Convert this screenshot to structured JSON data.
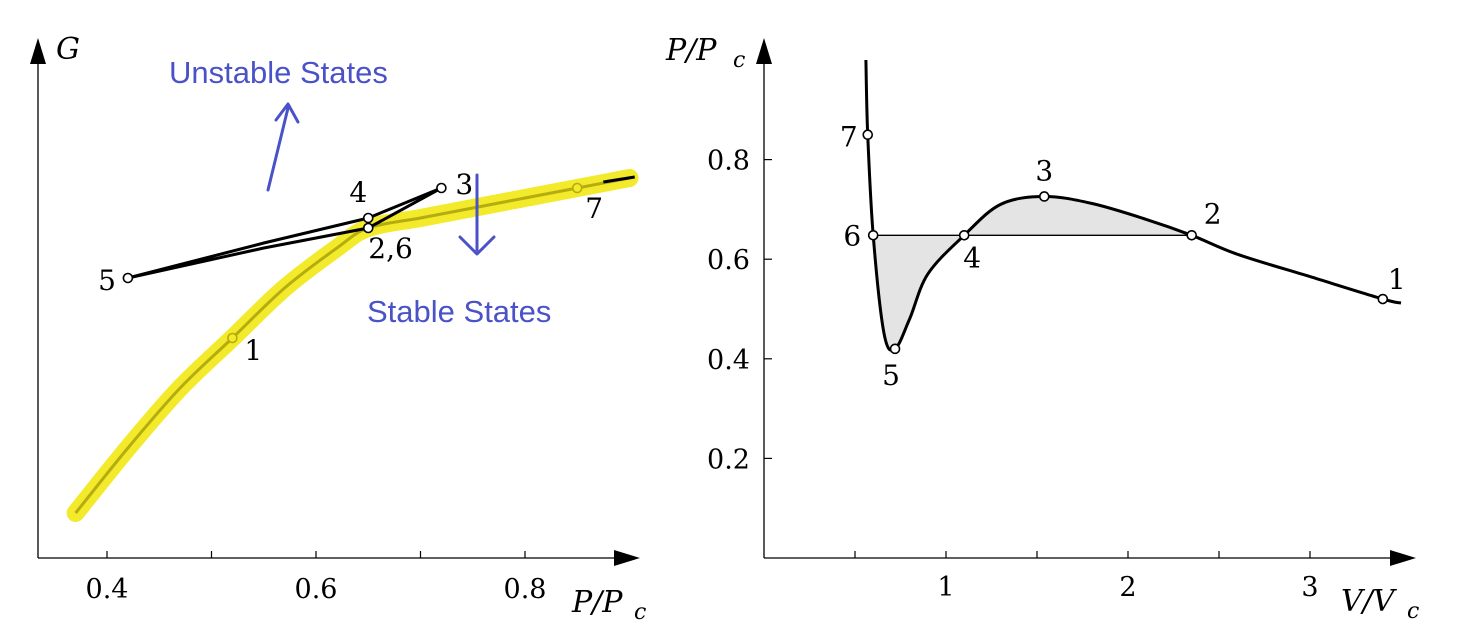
{
  "colors": {
    "axis": "#000000",
    "curve": "#000000",
    "highlight": "#f2ea2a",
    "stable_line": "#b5ad10",
    "annotation": "#4a52c8",
    "fill": "#e4e4e4",
    "marker_fill": "#ffffff"
  },
  "chart_data": [
    {
      "type": "line",
      "xlabel": "P/Pc",
      "ylabel": "G",
      "xlim": [
        0.34,
        0.92
      ],
      "ylim": [
        0,
        1
      ],
      "x_ticks": [
        0.4,
        0.5,
        0.6,
        0.7,
        0.8
      ],
      "x_tick_labels": [
        "0.4",
        "0.6",
        "0.8"
      ],
      "y_tick_labels": [],
      "grid": false,
      "series": [
        {
          "role": "stable",
          "points": [
            [
              0.37,
              0.09
            ],
            [
              0.42,
              0.22
            ],
            [
              0.47,
              0.34
            ],
            [
              0.52,
              0.44
            ],
            [
              0.57,
              0.54
            ],
            [
              0.62,
              0.62
            ],
            [
              0.65,
              0.66
            ],
            [
              0.7,
              0.68
            ],
            [
              0.75,
              0.7
            ],
            [
              0.8,
              0.72
            ],
            [
              0.85,
              0.74
            ],
            [
              0.9,
              0.76
            ]
          ]
        },
        {
          "role": "metastable-unstable",
          "points": [
            [
              0.42,
              0.56
            ],
            [
              0.55,
              0.62
            ],
            [
              0.65,
              0.66
            ],
            [
              0.72,
              0.74
            ],
            [
              0.65,
              0.68
            ],
            [
              0.55,
              0.63
            ],
            [
              0.42,
              0.56
            ]
          ]
        }
      ],
      "labeled_points": [
        {
          "label": "1",
          "x": 0.52,
          "y": 0.44
        },
        {
          "label": "2,6",
          "x": 0.65,
          "y": 0.66
        },
        {
          "label": "3",
          "x": 0.72,
          "y": 0.74
        },
        {
          "label": "4",
          "x": 0.65,
          "y": 0.68
        },
        {
          "label": "5",
          "x": 0.42,
          "y": 0.56
        },
        {
          "label": "7",
          "x": 0.85,
          "y": 0.74
        }
      ],
      "annotations": [
        {
          "text": "Unstable States",
          "direction": "up"
        },
        {
          "text": "Stable States",
          "direction": "down"
        }
      ]
    },
    {
      "type": "line",
      "xlabel": "V/Vc",
      "ylabel": "P/Pc",
      "xlim": [
        0,
        3.6
      ],
      "ylim": [
        0,
        1
      ],
      "x_ticks": [
        0.5,
        1,
        1.5,
        2,
        2.5,
        3
      ],
      "x_tick_labels": [
        "1",
        "2",
        "3"
      ],
      "y_ticks": [
        0.2,
        0.4,
        0.6,
        0.8
      ],
      "y_tick_labels": [
        "0.2",
        "0.4",
        "0.6",
        "0.8"
      ],
      "grid": false,
      "maxwell_pressure": 0.648,
      "series": [
        {
          "role": "isotherm",
          "points": [
            [
              0.56,
              1.0
            ],
            [
              0.57,
              0.85
            ],
            [
              0.6,
              0.648
            ],
            [
              0.66,
              0.45
            ],
            [
              0.72,
              0.42
            ],
            [
              0.8,
              0.48
            ],
            [
              0.9,
              0.57
            ],
            [
              1.1,
              0.648
            ],
            [
              1.3,
              0.71
            ],
            [
              1.54,
              0.726
            ],
            [
              1.8,
              0.712
            ],
            [
              2.1,
              0.68
            ],
            [
              2.35,
              0.648
            ],
            [
              2.6,
              0.61
            ],
            [
              3.0,
              0.565
            ],
            [
              3.4,
              0.52
            ],
            [
              3.5,
              0.512
            ]
          ]
        }
      ],
      "labeled_points": [
        {
          "label": "1",
          "x": 3.4,
          "y": 0.52
        },
        {
          "label": "2",
          "x": 2.35,
          "y": 0.648
        },
        {
          "label": "3",
          "x": 1.54,
          "y": 0.726
        },
        {
          "label": "4",
          "x": 1.1,
          "y": 0.648
        },
        {
          "label": "5",
          "x": 0.72,
          "y": 0.42
        },
        {
          "label": "6",
          "x": 0.6,
          "y": 0.648
        },
        {
          "label": "7",
          "x": 0.57,
          "y": 0.85
        }
      ]
    }
  ]
}
